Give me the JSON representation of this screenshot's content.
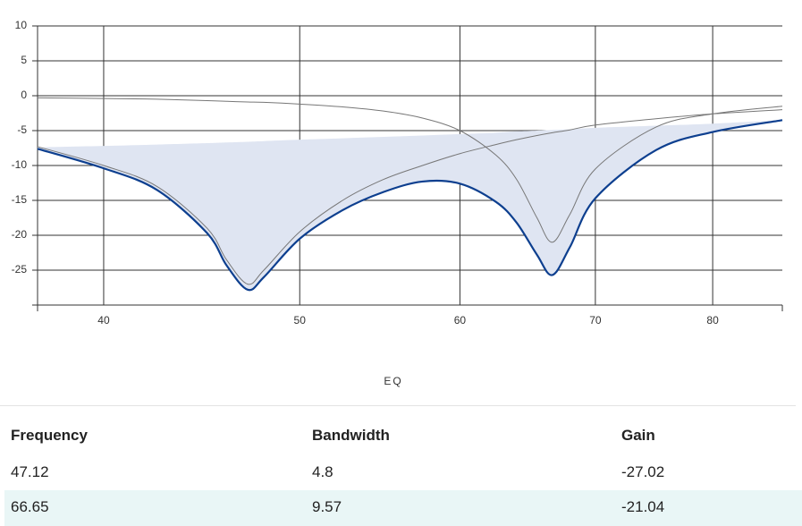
{
  "chart_data": {
    "type": "line",
    "xscale": "log",
    "x": [
      37.1,
      40,
      42.5,
      45,
      46,
      47.12,
      48,
      50,
      52.5,
      55,
      57.5,
      60,
      62.5,
      64,
      65.5,
      66.65,
      68,
      70,
      75,
      80,
      86.6
    ],
    "series": [
      {
        "color": "#777777",
        "width": 1,
        "values": [
          -7.3,
          -10,
          -13,
          -19,
          -23.5,
          -27,
          -25,
          -19.5,
          -15,
          -12,
          -10,
          -8.3,
          -7,
          -6.3,
          -5.7,
          -5.3,
          -4.9,
          -4.2,
          -3.3,
          -2.6,
          -2
        ]
      },
      {
        "color": "#777777",
        "width": 1,
        "values": [
          -0.3,
          -0.4,
          -0.5,
          -0.7,
          -0.8,
          -0.9,
          -0.95,
          -1.2,
          -1.6,
          -2.2,
          -3.2,
          -5,
          -8.5,
          -12,
          -17.5,
          -21,
          -17,
          -10.5,
          -4.5,
          -2.6,
          -1.5
        ]
      },
      {
        "color": "#0d3f8f",
        "width": 2.2,
        "values": [
          -7.6,
          -10.4,
          -13.5,
          -19.7,
          -24.3,
          -27.8,
          -26,
          -20.5,
          -16.4,
          -13.8,
          -12.3,
          -12.6,
          -15.2,
          -18.2,
          -22.8,
          -25.7,
          -21.7,
          -14.7,
          -7.8,
          -5.2,
          -3.5
        ]
      }
    ],
    "fill": {
      "color": "#dfe5f2",
      "upper": [
        -7.4,
        -7.2,
        -7,
        -6.8,
        -6.7,
        -6.6,
        -6.5,
        -6.3,
        -6.1,
        -5.9,
        -5.7,
        -5.5,
        -5.3,
        -5.1,
        -5,
        -4.9,
        -4.8,
        -4.6,
        -4.3,
        -4,
        -3.5
      ]
    },
    "xlim": [
      37.1,
      86.6
    ],
    "xticks": [
      40,
      50,
      60,
      70,
      80
    ],
    "ylim": [
      -30,
      10
    ],
    "yticks": [
      -25,
      -20,
      -15,
      -10,
      -5,
      0,
      5,
      10
    ],
    "grid": true,
    "x_label": "EQ"
  },
  "table": {
    "header": [
      "Frequency",
      "Bandwidth",
      "Gain"
    ],
    "rows": [
      [
        47.12,
        4.8,
        -27.02
      ],
      [
        66.65,
        9.57,
        -21.04
      ]
    ]
  }
}
